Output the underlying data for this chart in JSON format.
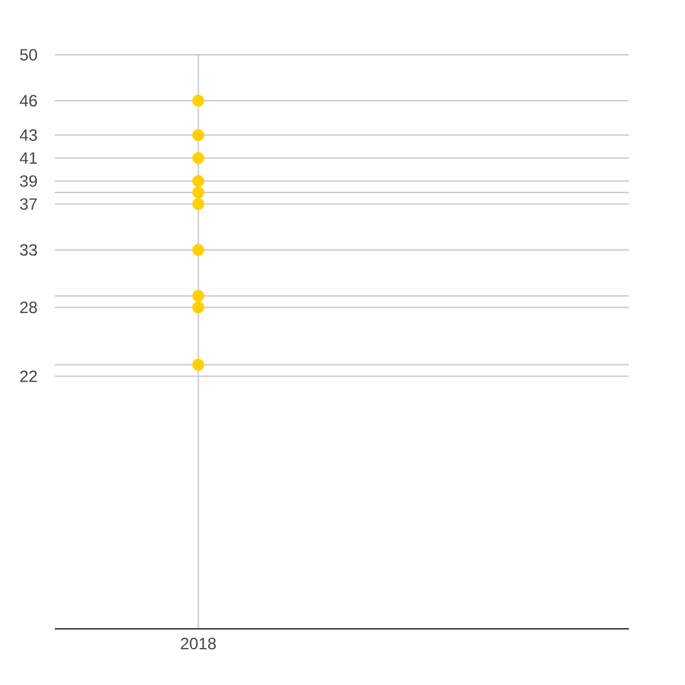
{
  "chart_data": {
    "type": "scatter",
    "categories": [
      "2018",
      null
    ],
    "series": [
      {
        "color": "#ffd000",
        "values": [
          46,
          null
        ]
      },
      {
        "color": "#ffd000",
        "values": [
          43,
          null
        ]
      },
      {
        "color": "#ffd000",
        "values": [
          41,
          null
        ]
      },
      {
        "color": "#ffd000",
        "values": [
          39,
          null
        ]
      },
      {
        "color": "#ffd000",
        "values": [
          38,
          null
        ]
      },
      {
        "color": "#ffd000",
        "values": [
          37,
          null
        ]
      },
      {
        "color": "#ffd000",
        "values": [
          33,
          null
        ]
      },
      {
        "color": "#ffd000",
        "values": [
          29,
          null
        ]
      },
      {
        "color": "#ffd000",
        "values": [
          28,
          null
        ]
      },
      {
        "color": "#ffd000",
        "values": [
          23,
          null
        ]
      }
    ],
    "ylim": [
      0,
      50
    ],
    "yticks": [
      22,
      {
        "value": 23,
        "label": null
      },
      28,
      {
        "value": 29,
        "label": null
      },
      33,
      37,
      {
        "value": 38,
        "label": null
      },
      39,
      41,
      43,
      46,
      50
    ],
    "grid": true,
    "marker": "circle"
  }
}
